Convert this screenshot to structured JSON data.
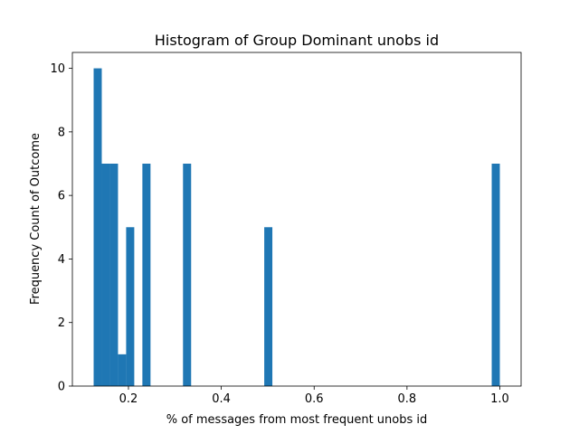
{
  "chart_data": {
    "type": "bar",
    "title": "Histogram of Group Dominant unobs id",
    "xlabel": "% of messages from most frequent unobs id",
    "ylabel": "Frequency Count of Outcome",
    "xlim": [
      0.0792,
      1.0458
    ],
    "ylim": [
      0,
      10.5
    ],
    "xticks": [
      0.2,
      0.4,
      0.6,
      0.8,
      1.0
    ],
    "xtick_labels": [
      "0.2",
      "0.4",
      "0.6",
      "0.8",
      "1.0"
    ],
    "yticks": [
      0,
      2,
      4,
      6,
      8,
      10
    ],
    "ytick_labels": [
      "0",
      "2",
      "4",
      "6",
      "8",
      "10"
    ],
    "bar_color": "#1f77b4",
    "bin_start": 0.125,
    "bin_width": 0.0175,
    "bins": [
      {
        "x0": 0.125,
        "x1": 0.1425,
        "count": 10
      },
      {
        "x0": 0.1425,
        "x1": 0.16,
        "count": 7
      },
      {
        "x0": 0.16,
        "x1": 0.1775,
        "count": 7
      },
      {
        "x0": 0.1775,
        "x1": 0.195,
        "count": 1
      },
      {
        "x0": 0.195,
        "x1": 0.2125,
        "count": 5
      },
      {
        "x0": 0.23,
        "x1": 0.2475,
        "count": 7
      },
      {
        "x0": 0.3175,
        "x1": 0.335,
        "count": 7
      },
      {
        "x0": 0.4925,
        "x1": 0.51,
        "count": 5
      },
      {
        "x0": 0.9825,
        "x1": 1.0,
        "count": 7
      }
    ],
    "grid": false,
    "legend": "none"
  }
}
